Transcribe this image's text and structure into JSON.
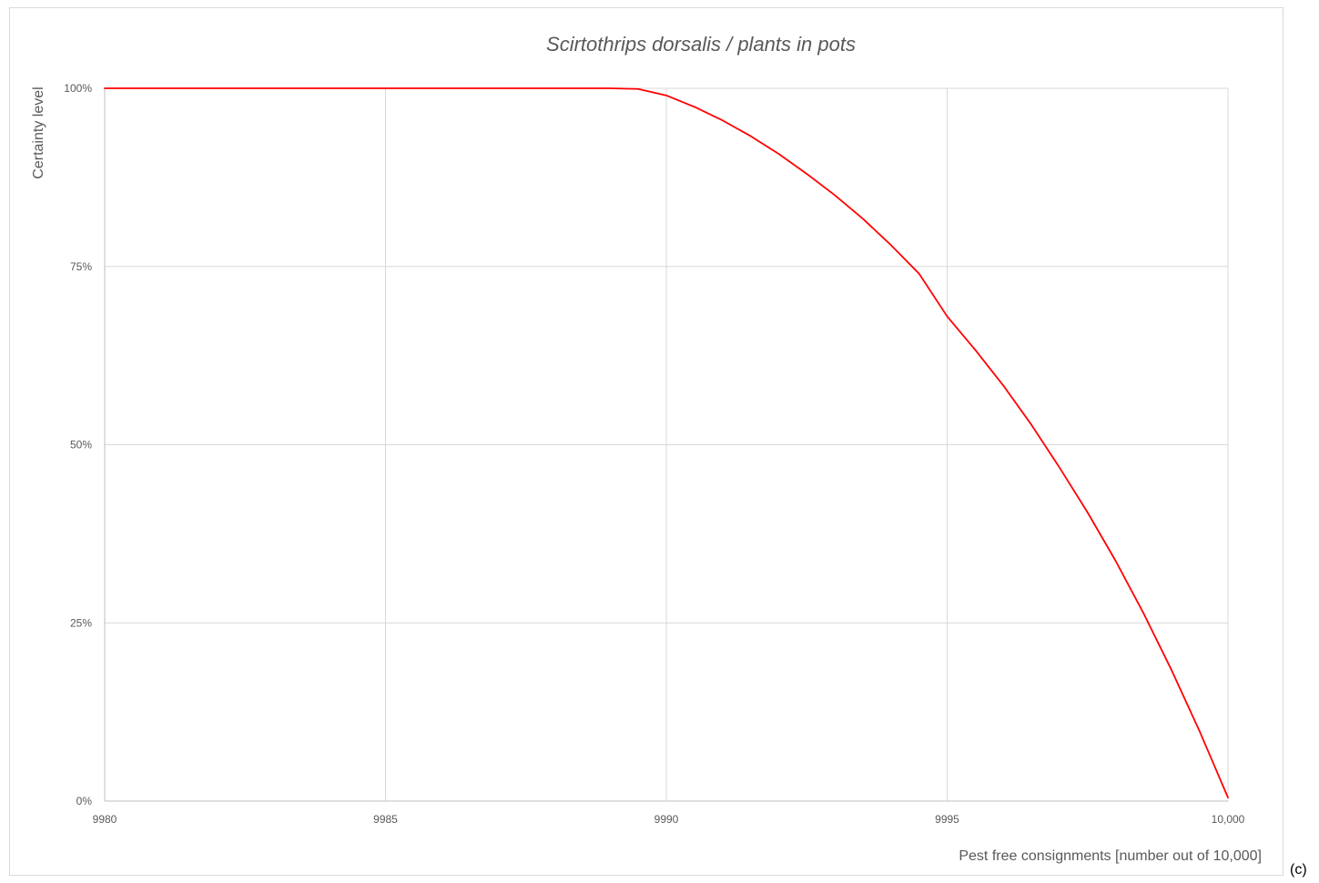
{
  "panel_label": "(c)",
  "chart_data": {
    "type": "line",
    "title": "Scirtothrips dorsalis / plants in pots",
    "xlabel": "Pest free consignments [number out of 10,000]",
    "ylabel": "Certainty level",
    "xlim": [
      9980,
      10000
    ],
    "ylim": [
      0,
      1
    ],
    "x_ticks": [
      9980,
      9985,
      9990,
      9995,
      10000
    ],
    "x_tick_labels": [
      "9980",
      "9985",
      "9990",
      "9995",
      "10,000"
    ],
    "y_ticks": [
      0,
      0.25,
      0.5,
      0.75,
      1
    ],
    "y_tick_labels": [
      "0%",
      "25%",
      "50%",
      "75%",
      "100%"
    ],
    "grid": true,
    "legend": "none",
    "series": [
      {
        "color": "#ff0000",
        "x": [
          9980,
          9985,
          9989,
          9989.5,
          9990,
          9990.5,
          9991,
          9991.5,
          9992,
          9992.5,
          9993,
          9993.5,
          9994,
          9994.5,
          9995,
          9995.5,
          9996,
          9996.5,
          9997,
          9997.5,
          9998,
          9998.5,
          9999,
          9999.5,
          10000
        ],
        "y": [
          1.0,
          1.0,
          1.0,
          0.999,
          0.99,
          0.974,
          0.955,
          0.933,
          0.908,
          0.88,
          0.85,
          0.817,
          0.78,
          0.74,
          0.68,
          0.633,
          0.583,
          0.528,
          0.468,
          0.405,
          0.337,
          0.263,
          0.183,
          0.097,
          0.005
        ]
      }
    ]
  }
}
